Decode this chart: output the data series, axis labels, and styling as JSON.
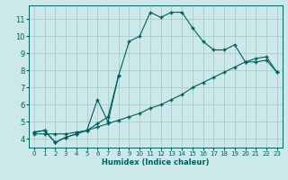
{
  "title": "",
  "xlabel": "Humidex (Indice chaleur)",
  "bg_color": "#cce8e8",
  "grid_color": "#aacccc",
  "line_color": "#006060",
  "xlim": [
    -0.5,
    23.5
  ],
  "ylim": [
    3.5,
    11.8
  ],
  "xticks": [
    0,
    1,
    2,
    3,
    4,
    5,
    6,
    7,
    8,
    9,
    10,
    11,
    12,
    13,
    14,
    15,
    16,
    17,
    18,
    19,
    20,
    21,
    22,
    23
  ],
  "yticks": [
    4,
    5,
    6,
    7,
    8,
    9,
    10,
    11
  ],
  "curve1_x": [
    0,
    1,
    2,
    3,
    4,
    5,
    6,
    7,
    8,
    9,
    10,
    11,
    12,
    13,
    14,
    15,
    16,
    17,
    18,
    19,
    20,
    21,
    22,
    23
  ],
  "curve1_y": [
    4.4,
    4.5,
    3.8,
    4.1,
    4.3,
    4.5,
    4.9,
    5.3,
    7.7,
    9.7,
    10.0,
    11.4,
    11.1,
    11.4,
    11.4,
    10.5,
    9.7,
    9.2,
    9.2,
    9.5,
    8.5,
    8.5,
    8.6,
    7.9
  ],
  "curve2_x": [
    0,
    1,
    2,
    3,
    4,
    5,
    6,
    7,
    8,
    9,
    10,
    11,
    12,
    13,
    14,
    15,
    16,
    17,
    18,
    19,
    20,
    21,
    22,
    23
  ],
  "curve2_y": [
    4.3,
    4.3,
    4.3,
    4.3,
    4.4,
    4.5,
    4.7,
    4.9,
    5.1,
    5.3,
    5.5,
    5.8,
    6.0,
    6.3,
    6.6,
    7.0,
    7.3,
    7.6,
    7.9,
    8.2,
    8.5,
    8.7,
    8.8,
    7.9
  ],
  "curve3_x": [
    0,
    1,
    2,
    3,
    4,
    5,
    6,
    7,
    8
  ],
  "curve3_y": [
    4.4,
    4.5,
    3.8,
    4.1,
    4.3,
    4.5,
    6.3,
    5.0,
    7.7
  ]
}
